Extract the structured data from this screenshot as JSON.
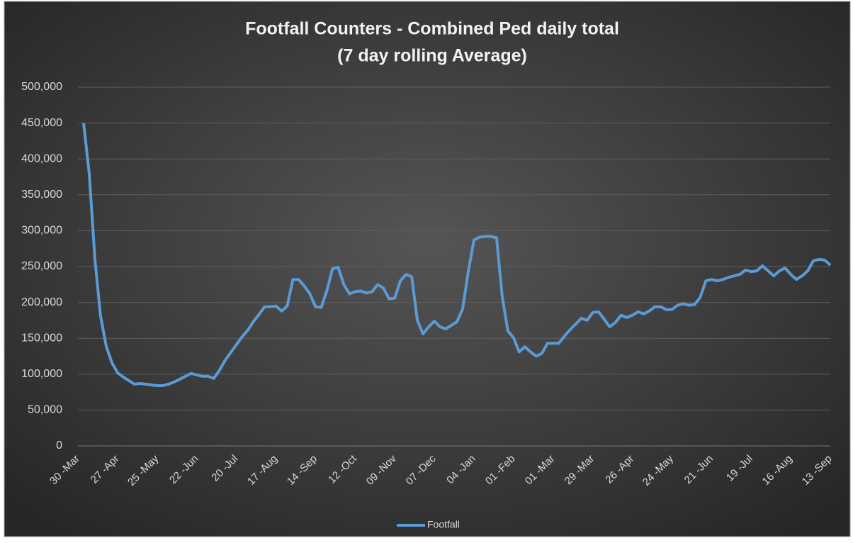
{
  "chart_data": {
    "type": "line",
    "title": "Footfall Counters - Combined Ped daily total",
    "subtitle": "(7 day rolling Average)",
    "categories": [
      "30 -Mar",
      null,
      null,
      null,
      null,
      null,
      null,
      "27 -Apr",
      null,
      null,
      null,
      null,
      null,
      null,
      "25 -May",
      null,
      null,
      null,
      null,
      null,
      null,
      "22 -Jun",
      null,
      null,
      null,
      null,
      null,
      null,
      "20 -Jul",
      null,
      null,
      null,
      null,
      null,
      null,
      "17 -Aug",
      null,
      null,
      null,
      null,
      null,
      null,
      "14 -Sep",
      null,
      null,
      null,
      null,
      null,
      null,
      "12 -Oct",
      null,
      null,
      null,
      null,
      null,
      null,
      "09 -Nov",
      null,
      null,
      null,
      null,
      null,
      null,
      "07 -Dec",
      null,
      null,
      null,
      null,
      null,
      null,
      "04 -Jan",
      null,
      null,
      null,
      null,
      null,
      null,
      "01 -Feb",
      null,
      null,
      null,
      null,
      null,
      null,
      "01 -Mar",
      null,
      null,
      null,
      null,
      null,
      null,
      "29 -Mar",
      null,
      null,
      null,
      null,
      null,
      null,
      "26 -Apr",
      null,
      null,
      null,
      null,
      null,
      null,
      "24 -May",
      null,
      null,
      null,
      null,
      null,
      null,
      "21 -Jun",
      null,
      null,
      null,
      null,
      null,
      null,
      "19 -Jul",
      null,
      null,
      null,
      null,
      null,
      null,
      "16 -Aug",
      null,
      null,
      null,
      null,
      null,
      null,
      "13 -Sep"
    ],
    "series": [
      {
        "name": "Footfall",
        "color": "#5b9bd5",
        "values": [
          null,
          450000,
          379000,
          260000,
          181000,
          139000,
          116000,
          102000,
          96000,
          91000,
          86000,
          87000,
          86000,
          85000,
          84000,
          84000,
          86000,
          89000,
          93000,
          97000,
          101000,
          99000,
          97000,
          97000,
          94000,
          105000,
          119000,
          130000,
          141000,
          152000,
          161000,
          173000,
          183000,
          194000,
          194000,
          195000,
          188000,
          195000,
          232000,
          232000,
          223000,
          212000,
          194000,
          193000,
          216000,
          247000,
          249000,
          225000,
          212000,
          215000,
          216000,
          213000,
          215000,
          225000,
          220000,
          205000,
          206000,
          230000,
          239000,
          236000,
          175000,
          156000,
          166000,
          174000,
          166000,
          163000,
          168000,
          173000,
          191000,
          243000,
          287000,
          291000,
          292000,
          292000,
          290000,
          208000,
          160000,
          151000,
          131000,
          138000,
          131000,
          125000,
          129000,
          143000,
          143000,
          143000,
          153000,
          162000,
          170000,
          178000,
          175000,
          186000,
          187000,
          177000,
          166000,
          172000,
          182000,
          179000,
          182000,
          187000,
          184000,
          188000,
          194000,
          194000,
          190000,
          190000,
          196000,
          198000,
          196000,
          197000,
          207000,
          230000,
          232000,
          230000,
          232000,
          235000,
          237000,
          239000,
          245000,
          243000,
          244000,
          251000,
          244000,
          237000,
          244000,
          248000,
          239000,
          232000,
          237000,
          244000,
          258000,
          260000,
          259000,
          252000
        ]
      }
    ],
    "ylim": [
      0,
      500000
    ],
    "yticks": [
      0,
      {
        "value": 50000,
        "label": "50,000"
      },
      {
        "value": 100000,
        "label": "100,000"
      },
      {
        "value": 150000,
        "label": "150,000"
      },
      {
        "value": 200000,
        "label": "200,000"
      },
      {
        "value": 250000,
        "label": "250,000"
      },
      {
        "value": 300000,
        "label": "300,000"
      },
      {
        "value": 350000,
        "label": "350,000"
      },
      {
        "value": 400000,
        "label": "400,000"
      },
      {
        "value": 450000,
        "label": "450,000"
      },
      {
        "value": 500000,
        "label": "500,000"
      }
    ],
    "grid": true,
    "legend": "bottom"
  }
}
